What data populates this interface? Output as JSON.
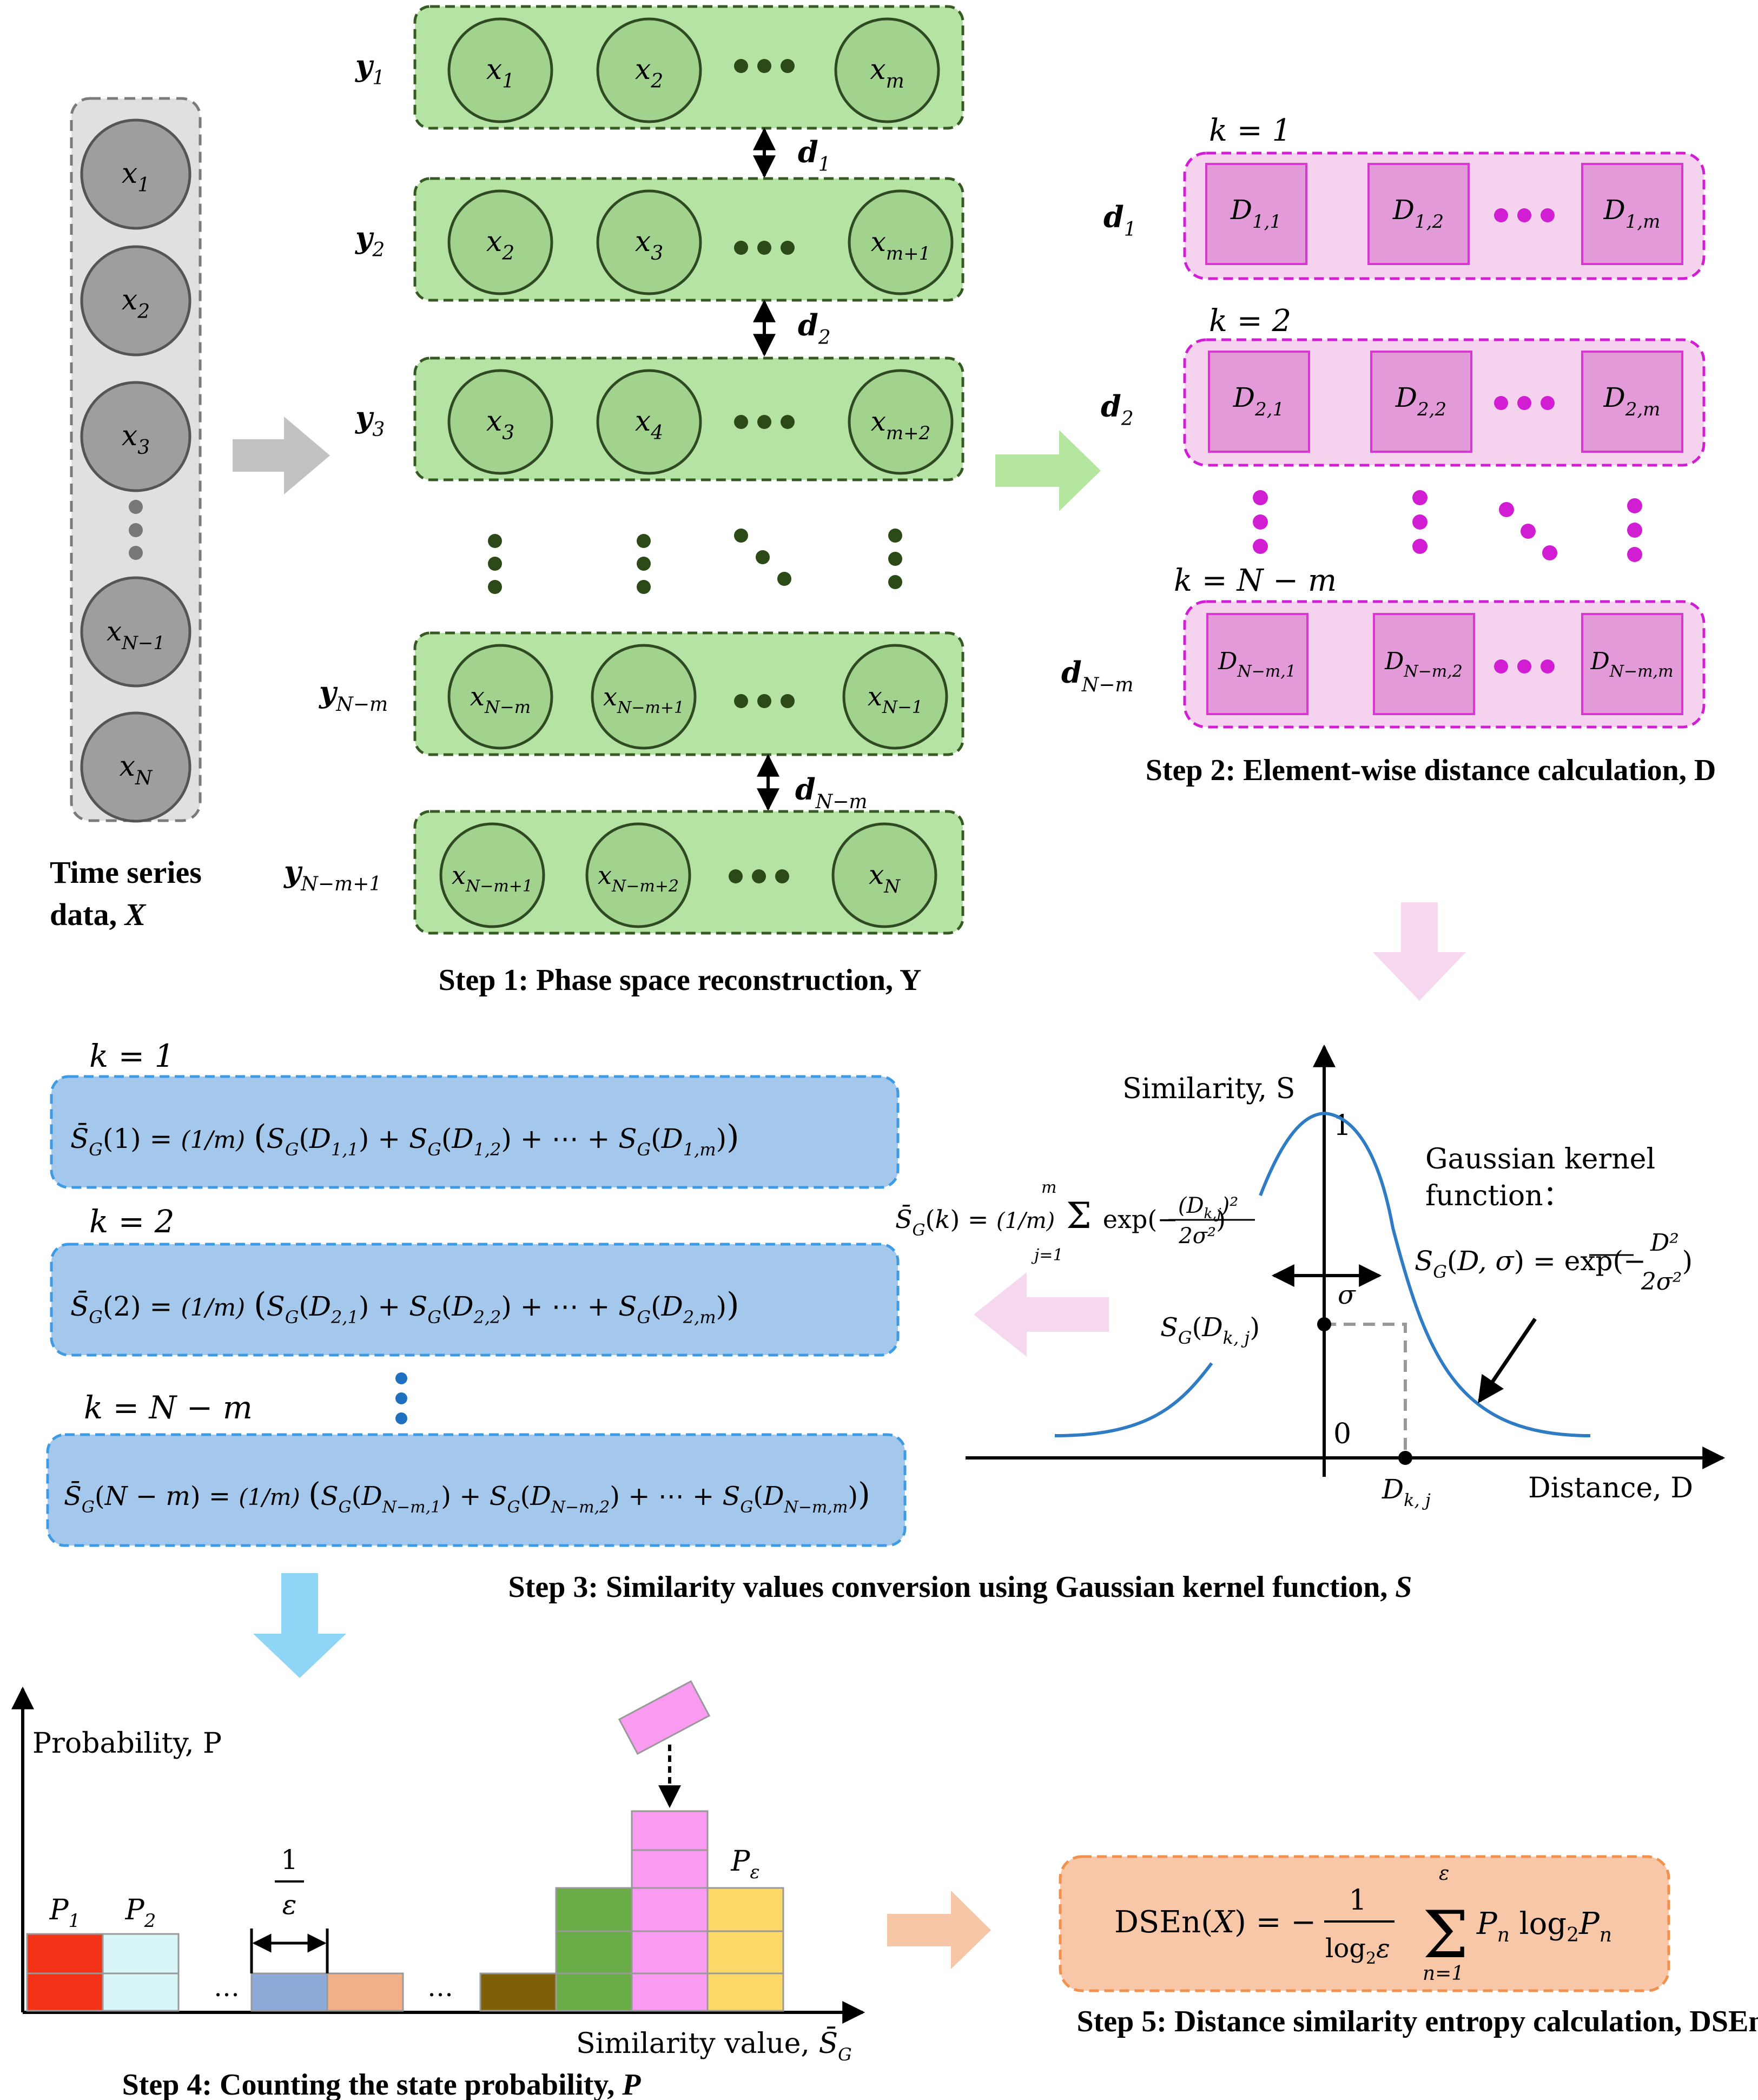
{
  "column": {
    "items": [
      "x1",
      "x2",
      "x3",
      "xN−1",
      "xN"
    ],
    "caption_line1": "Time  series",
    "caption_line2": "data, ",
    "caption_var": "X"
  },
  "step1": {
    "rows": [
      {
        "label": "y1",
        "cells": [
          "x1",
          "x2",
          "xm"
        ]
      },
      {
        "label": "y2",
        "cells": [
          "x2",
          "x3",
          "xm+1"
        ]
      },
      {
        "label": "y3",
        "cells": [
          "x3",
          "x4",
          "xm+2"
        ]
      },
      {
        "label": "yN−m",
        "cells": [
          "xN−m",
          "xN−m+1",
          "xN−1"
        ]
      },
      {
        "label": "yN−m+1",
        "cells": [
          "xN−m+1",
          "xN−m+2",
          "xN"
        ]
      }
    ],
    "distances": [
      "d1",
      "d2",
      "dN−m"
    ],
    "caption": "Step 1: Phase space reconstruction, Y"
  },
  "step2": {
    "rows": [
      {
        "k": "k = 1",
        "label": "d1",
        "cells": [
          "D1,1",
          "D1,2",
          "D1,m"
        ]
      },
      {
        "k": "k = 2",
        "label": "d2",
        "cells": [
          "D2,1",
          "D2,2",
          "D2,m"
        ]
      },
      {
        "k": "k = N − m",
        "label": "dN−m",
        "cells": [
          "DN−m,1",
          "DN−m,2",
          "DN−m,m"
        ]
      }
    ],
    "caption": "Step 2: Element-wise distance calculation, D"
  },
  "step3": {
    "rows": [
      {
        "k": "k = 1",
        "formula": "S̄G(1) = (1/m)(SG(D1,1) + SG(D1,2) + ⋯ + SG(D1,m))"
      },
      {
        "k": "k = 2",
        "formula": "S̄G(2) = (1/m)(SG(D2,1) + SG(D2,2) + ⋯ + SG(D2,m))"
      },
      {
        "k": "k = N − m",
        "formula": "S̄G(N − m) = (1/m)(SG(DN−m,1) + SG(DN−m,2) + ⋯ + SG(DN−m,m))"
      }
    ],
    "graph": {
      "ylabel": "Similarity, S",
      "xlabel": "Distance, D",
      "y_one": "1",
      "y_zero": "0",
      "sigma": "σ",
      "point_label": "SG(Dk, j)",
      "x_tick": "Dk, j",
      "kernel_title_1": "Gaussian   kernel",
      "kernel_title_2": "function：",
      "kernel_formula": "SG(D, σ) = exp(− D² / 2σ²)",
      "mean_formula": "S̄G(k) = (1/m) Σj=1..m exp(−(Dk,j)² / 2σ²)"
    },
    "caption": "Step 3: Similarity values conversion using Gaussian kernel function, ",
    "caption_var": "S"
  },
  "step4": {
    "ylabel": "Probability, P",
    "xlabel": "Similarity value, S̄G",
    "bar_labels": [
      "P1",
      "P2",
      "Pε"
    ],
    "width_label": "1/ε",
    "ellipsis": [
      "…",
      "…"
    ],
    "caption": "Step 4: Counting the state probability, ",
    "caption_var": "P"
  },
  "step5": {
    "formula": "DSEn(X) = −(1/log2ε) Σn=1..ε Pn log2Pn",
    "caption": "Step 5: Distance similarity entropy calculation, DSEn"
  },
  "colors": {
    "green_box": "#b5e3a4",
    "green_circle": "#a2d38e",
    "pink_box": "#f5d3ef",
    "pink_cell": "#e39ad8",
    "magenta": "#d21ed2",
    "blue_box": "#a4c8ec",
    "gaussian": "#2f7cc4",
    "formula_box": "#f7c7a8",
    "bar_red": "#f43218",
    "bar_cyan": "#d8f6f8",
    "bar_blue": "#8eaad8",
    "bar_salmon": "#f2b088",
    "bar_olive": "#7e6006",
    "bar_green": "#6aac46",
    "bar_pink": "#f99bf1",
    "bar_yellow": "#fdd96a"
  }
}
